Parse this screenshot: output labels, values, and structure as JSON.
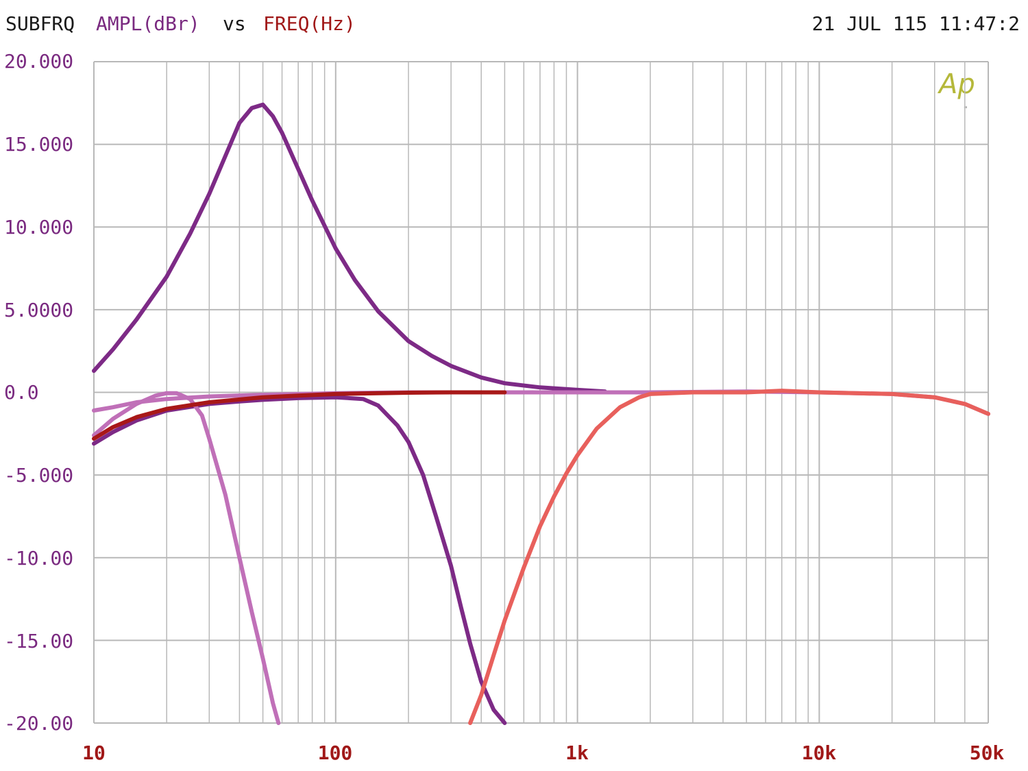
{
  "header": {
    "left_title": "SUBFRQ",
    "y_quantity": "AMPL(dBr)",
    "vs_word": "vs",
    "x_quantity": "FREQ(Hz)",
    "timestamp": "21 JUL 115 11:47:2"
  },
  "logo_text": "Ap",
  "colors": {
    "title": "#1a1a1a",
    "y_axis_text": "#7a2a80",
    "x_axis_text": "#a01818",
    "grid": "#b8b8b8",
    "logo": "#b5b83a"
  },
  "y_tick_labels": [
    "20.000",
    "15.000",
    "10.000",
    "5.0000",
    "0.0",
    "-5.000",
    "-10.00",
    "-15.00",
    "-20.00"
  ],
  "x_tick_labels": [
    {
      "label": "10",
      "value": 10
    },
    {
      "label": "100",
      "value": 100
    },
    {
      "label": "1k",
      "value": 1000
    },
    {
      "label": "10k",
      "value": 10000
    },
    {
      "label": "50k",
      "value": 50000
    }
  ],
  "chart_data": {
    "type": "line",
    "xscale": "log",
    "xlim": [
      10,
      50000
    ],
    "ylim": [
      -20,
      20
    ],
    "grid": true,
    "xlabel": "FREQ(Hz)",
    "ylabel": "AMPL(dBr)",
    "series": [
      {
        "color": "#7d2a86",
        "x": [
          10,
          12,
          15,
          20,
          25,
          30,
          35,
          40,
          45,
          50,
          55,
          60,
          70,
          80,
          100,
          120,
          150,
          200,
          250,
          300,
          400,
          500,
          700,
          1000,
          1300
        ],
        "y": [
          1.3,
          2.6,
          4.4,
          7.0,
          9.6,
          12.0,
          14.3,
          16.3,
          17.2,
          17.4,
          16.7,
          15.7,
          13.5,
          11.6,
          8.7,
          6.8,
          4.9,
          3.1,
          2.2,
          1.6,
          0.9,
          0.55,
          0.3,
          0.15,
          0.05
        ]
      },
      {
        "color": "#7d2a86",
        "x": [
          10,
          12,
          15,
          20,
          30,
          40,
          50,
          70,
          100,
          130,
          150,
          180,
          200,
          230,
          260,
          300,
          330,
          360,
          400,
          450,
          500
        ],
        "y": [
          -3.1,
          -2.4,
          -1.7,
          -1.1,
          -0.7,
          -0.55,
          -0.45,
          -0.35,
          -0.3,
          -0.4,
          -0.8,
          -2.0,
          -3.0,
          -5.0,
          -7.5,
          -10.5,
          -13.0,
          -15.2,
          -17.5,
          -19.2,
          -20.0
        ]
      },
      {
        "color": "#c070b8",
        "x": [
          10,
          12,
          15,
          18,
          20,
          22,
          25,
          28,
          30,
          35,
          40,
          45,
          50,
          55,
          58
        ],
        "y": [
          -2.6,
          -1.6,
          -0.7,
          -0.2,
          -0.05,
          -0.05,
          -0.4,
          -1.4,
          -2.8,
          -6.2,
          -10.0,
          -13.3,
          -16.1,
          -18.8,
          -20.0
        ]
      },
      {
        "color": "#c070b8",
        "x": [
          10,
          12,
          15,
          20,
          30,
          50,
          100,
          200,
          500,
          1000,
          2000,
          5000,
          10000,
          20000,
          30000,
          40000,
          50000
        ],
        "y": [
          -1.1,
          -0.9,
          -0.6,
          -0.4,
          -0.25,
          -0.15,
          -0.05,
          0.0,
          0.0,
          0.0,
          0.0,
          0.05,
          0.0,
          -0.1,
          -0.3,
          -0.7,
          -1.3
        ]
      },
      {
        "color": "#a81818",
        "x": [
          10,
          12,
          15,
          20,
          30,
          50,
          70,
          100,
          150,
          200,
          300,
          500
        ],
        "y": [
          -2.8,
          -2.1,
          -1.5,
          -1.0,
          -0.6,
          -0.3,
          -0.2,
          -0.1,
          -0.05,
          -0.02,
          0.0,
          0.0
        ]
      },
      {
        "color": "#e8605c",
        "x": [
          360,
          400,
          450,
          500,
          600,
          700,
          800,
          900,
          1000,
          1200,
          1500,
          1800,
          2000,
          3000,
          5000,
          7000,
          10000,
          20000,
          30000,
          40000,
          50000
        ],
        "y": [
          -20.0,
          -18.3,
          -15.9,
          -13.8,
          -10.6,
          -8.1,
          -6.3,
          -4.9,
          -3.8,
          -2.2,
          -0.9,
          -0.3,
          -0.1,
          0.0,
          0.0,
          0.1,
          0.0,
          -0.1,
          -0.3,
          -0.7,
          -1.3
        ]
      }
    ]
  }
}
